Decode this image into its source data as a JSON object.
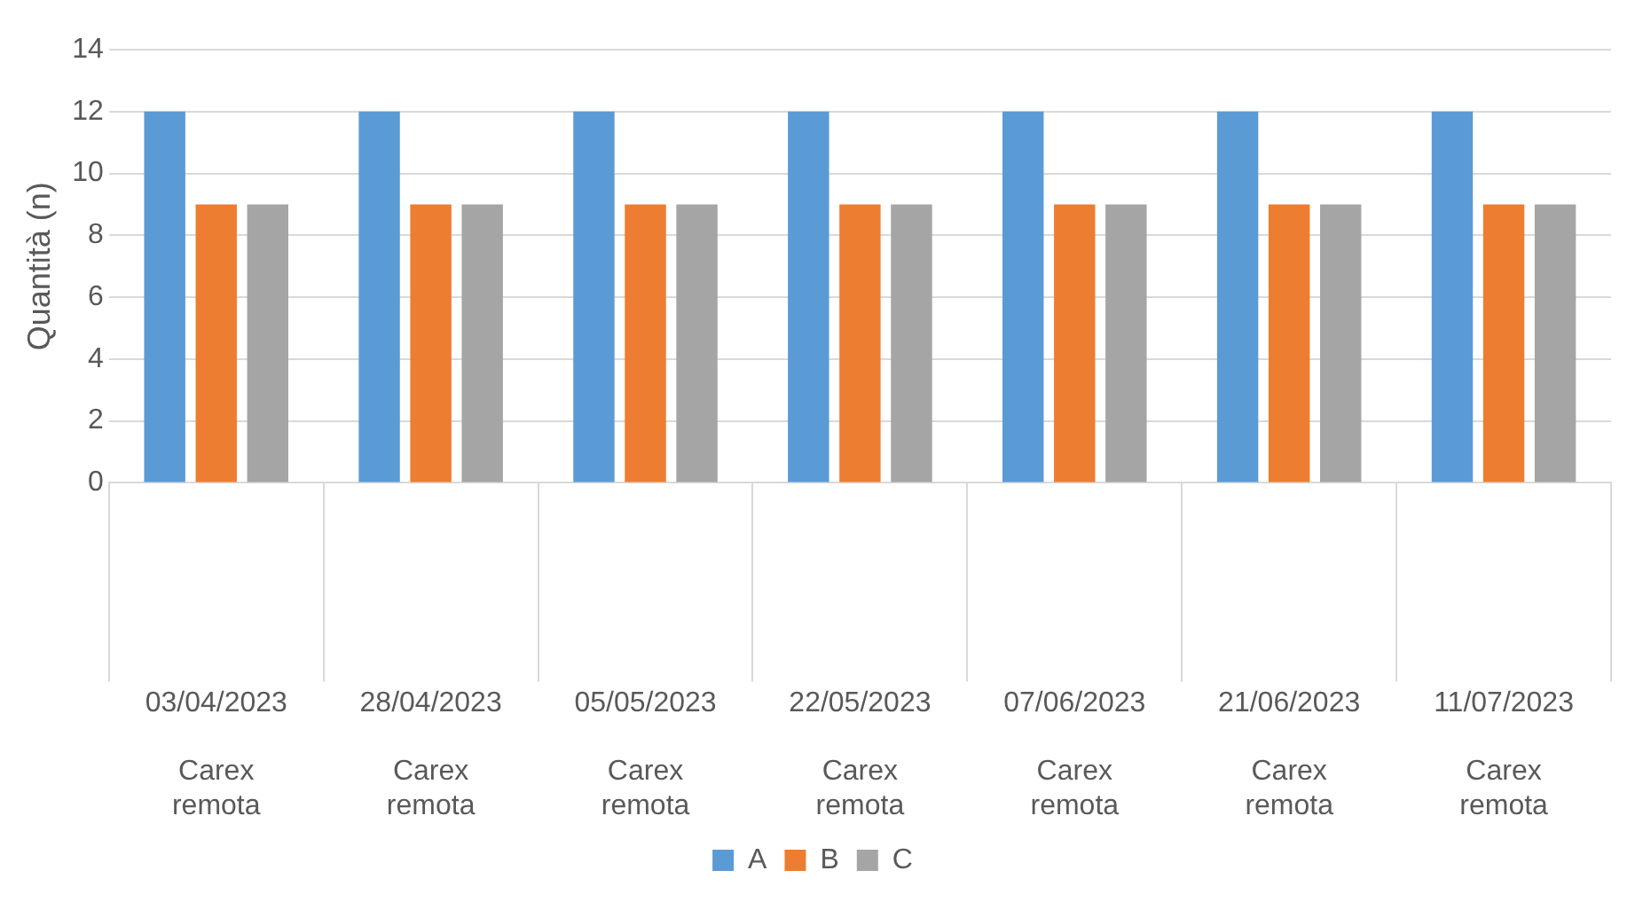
{
  "chart_data": {
    "type": "bar",
    "ylabel": "Quantità (n)",
    "categories": [
      "03/04/2023 Carex remota",
      "28/04/2023 Carex remota",
      "05/05/2023 Carex remota",
      "22/05/2023 Carex remota",
      "07/06/2023 Carex remota",
      "21/06/2023 Carex remota",
      "11/07/2023 Carex remota"
    ],
    "series": [
      {
        "name": "A",
        "color": "#5b9bd5",
        "values": [
          12,
          12,
          12,
          12,
          12,
          12,
          12
        ]
      },
      {
        "name": "B",
        "color": "#ed7d31",
        "values": [
          9,
          9,
          9,
          9,
          9,
          9,
          9
        ]
      },
      {
        "name": "C",
        "color": "#a5a5a5",
        "values": [
          9,
          9,
          9,
          9,
          9,
          9,
          9
        ]
      }
    ],
    "ylim": [
      0,
      14
    ],
    "yticks": [
      0,
      2,
      4,
      6,
      8,
      10,
      12,
      14
    ],
    "grid": "y",
    "legend": "bottom"
  }
}
